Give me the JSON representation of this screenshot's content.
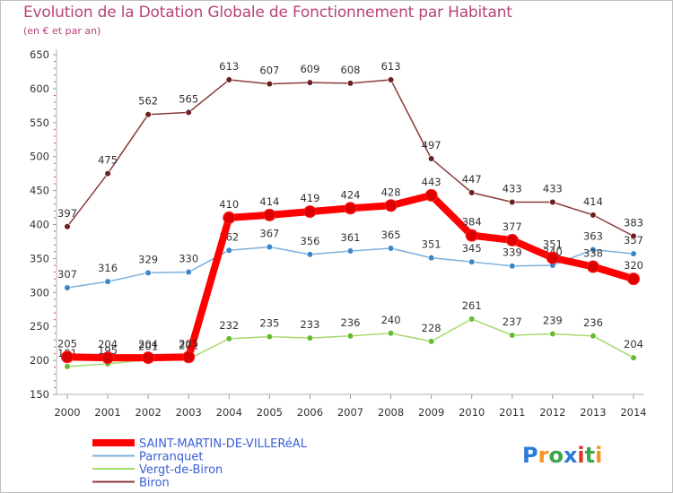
{
  "title": "Evolution de la Dotation Globale de Fonctionnement par Habitant",
  "subtitle": "(en € et par an)",
  "logo": {
    "text": "Proxiti",
    "colors": [
      "#2c7bd6",
      "#f7931e",
      "#3aa54a",
      "#2c7bd6",
      "#e63323",
      "#3aa54a",
      "#f7931e"
    ]
  },
  "chart_data": {
    "type": "line",
    "title": "Evolution de la Dotation Globale de Fonctionnement par Habitant",
    "xlabel": "",
    "ylabel": "(en € et par an)",
    "ylim": [
      150,
      650
    ],
    "yticks": [
      150,
      200,
      250,
      300,
      350,
      400,
      450,
      500,
      550,
      600,
      650
    ],
    "grid": false,
    "legend_position": "bottom-left",
    "x": [
      "2000",
      "2001",
      "2002",
      "2003",
      "2004",
      "2005",
      "2006",
      "2007",
      "2008",
      "2009",
      "2010",
      "2011",
      "2012",
      "2013",
      "2014"
    ],
    "series": [
      {
        "name": "Vergt-de-Biron",
        "color": "#a6d96a",
        "marker": "#66bb33",
        "values": [
          191,
          195,
          201,
          202,
          232,
          235,
          233,
          236,
          240,
          228,
          261,
          237,
          239,
          236,
          204
        ],
        "labels": [
          "191",
          "195",
          "201",
          "202",
          "232",
          "235",
          "233",
          "236",
          "240",
          "228",
          "261",
          "237",
          "239",
          "236",
          "204"
        ]
      },
      {
        "name": "Parranquet",
        "color": "#7ab0de",
        "marker": "#3a86c8",
        "values": [
          307,
          316,
          329,
          330,
          362,
          367,
          356,
          361,
          365,
          351,
          345,
          339,
          340,
          363,
          357
        ],
        "labels": [
          "307",
          "316",
          "329",
          "330",
          "362",
          "367",
          "356",
          "361",
          "365",
          "351",
          "345",
          "339",
          "340",
          "363",
          "357"
        ]
      },
      {
        "name": "Biron",
        "color": "#8b3a3a",
        "marker": "#6b1f1f",
        "values": [
          397,
          475,
          562,
          565,
          613,
          607,
          609,
          608,
          613,
          497,
          447,
          433,
          433,
          414,
          383
        ],
        "labels": [
          "397",
          "475",
          "562",
          "565",
          "613",
          "607",
          "609",
          "608",
          "613",
          "497",
          "447",
          "433",
          "433",
          "414",
          "383"
        ]
      },
      {
        "name": "SAINT-MARTIN-DE-VILLERéAL",
        "color": "#ff0000",
        "marker": "#dd0000",
        "values": [
          205,
          204,
          204,
          205,
          410,
          414,
          419,
          424,
          428,
          443,
          384,
          377,
          351,
          338,
          320
        ],
        "labels": [
          "205",
          "204",
          "204",
          "205",
          "410",
          "414",
          "419",
          "424",
          "428",
          "443",
          "384",
          "377",
          "351",
          "338",
          "320"
        ]
      }
    ],
    "legend": [
      "SAINT-MARTIN-DE-VILLERéAL",
      "Parranquet",
      "Vergt-de-Biron",
      "Biron"
    ]
  }
}
